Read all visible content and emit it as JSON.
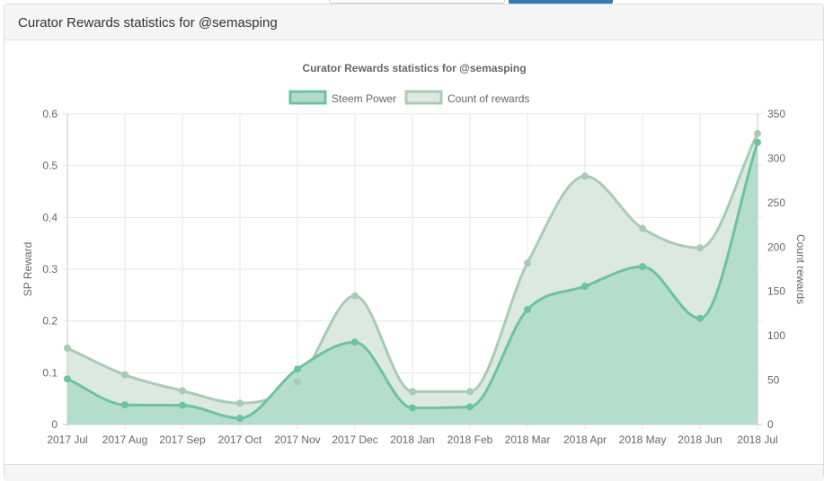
{
  "panel": {
    "heading": "Curator Rewards statistics for @semasping"
  },
  "chart_data": {
    "type": "area",
    "title": "Curator Rewards statistics for @semasping",
    "categories": [
      "2017 Jul",
      "2017 Aug",
      "2017 Sep",
      "2017 Oct",
      "2017 Nov",
      "2017 Dec",
      "2018 Jan",
      "2018 Feb",
      "2018 Mar",
      "2018 Apr",
      "2018 May",
      "2018 Jun",
      "2018 Jul"
    ],
    "series": [
      {
        "name": "Steem Power",
        "axis": "left",
        "values": [
          0.088,
          0.038,
          0.037,
          0.012,
          0.107,
          0.159,
          0.032,
          0.034,
          0.222,
          0.267,
          0.305,
          0.205,
          0.545
        ],
        "color": "#6cc3a0",
        "fill": "#b3dccb"
      },
      {
        "name": "Count of rewards",
        "axis": "right",
        "values": [
          86,
          56,
          38,
          24,
          48,
          145,
          37,
          37,
          182,
          280,
          221,
          199,
          328
        ],
        "color": "#a9cbb6",
        "fill": "#dbe9e1"
      }
    ],
    "y_left": {
      "label": "SP Reward",
      "min": 0,
      "max": 0.6,
      "ticks": [
        "0",
        "0.1",
        "0.2",
        "0.3",
        "0.4",
        "0.5",
        "0.6"
      ]
    },
    "y_right": {
      "label": "Count rewards",
      "min": 0,
      "max": 350,
      "ticks": [
        "0",
        "50",
        "100",
        "150",
        "200",
        "250",
        "300",
        "350"
      ]
    },
    "grid": true,
    "legend_position": "top"
  }
}
